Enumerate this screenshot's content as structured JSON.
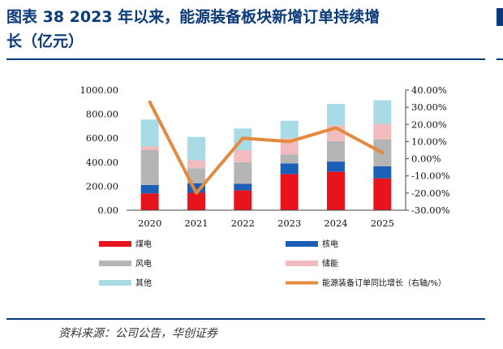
{
  "figure": {
    "title_line1": "图表 38   2023 年以来，能源装备板块新增订单持续增",
    "title_line2": "长（亿元）",
    "source": "资料来源：公司公告，华创证券"
  },
  "chart_data": {
    "type": "bar",
    "stacked": true,
    "categories": [
      "2020",
      "2021",
      "2022",
      "2023",
      "2024",
      "2025"
    ],
    "series": [
      {
        "name": "煤电",
        "color": "#e8141b",
        "values": [
          140,
          145,
          165,
          300,
          320,
          265
        ]
      },
      {
        "name": "核电",
        "color": "#1b5fb8",
        "values": [
          70,
          80,
          55,
          90,
          85,
          100
        ]
      },
      {
        "name": "风电",
        "color": "#b5b5b5",
        "values": [
          290,
          125,
          180,
          75,
          170,
          225
        ]
      },
      {
        "name": "储能",
        "color": "#f2bcbf",
        "values": [
          30,
          65,
          100,
          135,
          130,
          130
        ]
      },
      {
        "name": "其他",
        "color": "#a9dbe6",
        "values": [
          225,
          195,
          180,
          145,
          180,
          195
        ]
      }
    ],
    "line_series": {
      "name": "能源装备订单同比增长（右轴/%）",
      "color": "#e38a3f",
      "values": [
        33,
        -20,
        12,
        10,
        18,
        3.5
      ]
    },
    "y_left": {
      "range": [
        0,
        1000
      ],
      "ticks": [
        "1000.00",
        "800.00",
        "600.00",
        "400.00",
        "200.00",
        "0.00"
      ]
    },
    "y_right": {
      "range": [
        -30,
        40
      ],
      "ticks": [
        "40.00%",
        "30.00%",
        "20.00%",
        "10.00%",
        "0.00%",
        "-10.00%",
        "-20.00%",
        "-30.00%"
      ]
    },
    "legend_position": "bottom",
    "grid": false
  }
}
